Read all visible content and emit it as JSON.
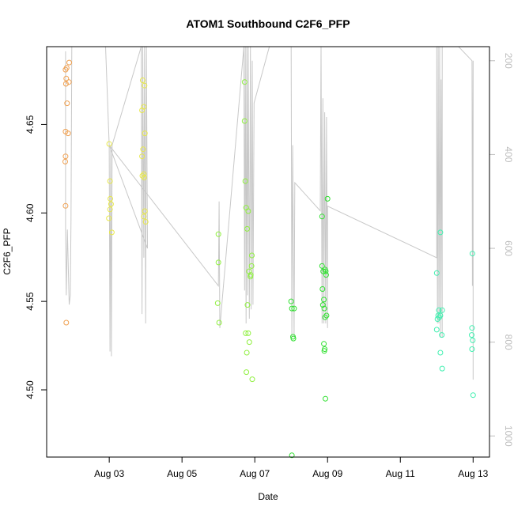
{
  "chart_data": {
    "type": "scatter",
    "title": "ATOM1 Southbound C2F6_PFP",
    "xlabel": "Date",
    "ylabel": "C2F6_PFP",
    "x_unit": "date (August)",
    "xlim": [
      1.28,
      13.45
    ],
    "ylim": [
      4.462,
      4.694
    ],
    "x_ticks": [
      {
        "value": 3,
        "label": "Aug 03"
      },
      {
        "value": 5,
        "label": "Aug 05"
      },
      {
        "value": 7,
        "label": "Aug 07"
      },
      {
        "value": 9,
        "label": "Aug 09"
      },
      {
        "value": 11,
        "label": "Aug 11"
      },
      {
        "value": 13,
        "label": "Aug 13"
      }
    ],
    "y_ticks": [
      {
        "value": 4.5,
        "label": "4.50"
      },
      {
        "value": 4.55,
        "label": "4.55"
      },
      {
        "value": 4.6,
        "label": "4.60"
      },
      {
        "value": 4.65,
        "label": "4.65"
      }
    ],
    "right_axis": {
      "ylim": [
        1045,
        170
      ],
      "ticks": [
        {
          "value": 200,
          "label": "200"
        },
        {
          "value": 400,
          "label": "400"
        },
        {
          "value": 600,
          "label": "600"
        },
        {
          "value": 800,
          "label": "800"
        },
        {
          "value": 1000,
          "label": "1000"
        }
      ],
      "color": "#bdbdbd"
    },
    "grid": false,
    "legend": "none",
    "series": [
      {
        "color": "#f0a050",
        "points": [
          [
            1.8,
            4.681
          ],
          [
            1.83,
            4.682
          ],
          [
            1.82,
            4.676
          ],
          [
            1.81,
            4.673
          ],
          [
            1.9,
            4.685
          ],
          [
            1.89,
            4.674
          ],
          [
            1.84,
            4.662
          ],
          [
            1.8,
            4.646
          ],
          [
            1.87,
            4.645
          ],
          [
            1.8,
            4.632
          ],
          [
            1.79,
            4.629
          ],
          [
            1.8,
            4.604
          ],
          [
            1.82,
            4.538
          ]
        ]
      },
      {
        "color": "#e8e84a",
        "points": [
          [
            3.0,
            4.639
          ],
          [
            3.02,
            4.618
          ],
          [
            3.03,
            4.608
          ],
          [
            3.05,
            4.605
          ],
          [
            3.02,
            4.602
          ],
          [
            2.99,
            4.597
          ],
          [
            3.07,
            4.589
          ],
          [
            3.92,
            4.675
          ],
          [
            3.97,
            4.672
          ],
          [
            3.95,
            4.66
          ],
          [
            3.9,
            4.658
          ],
          [
            3.98,
            4.645
          ],
          [
            3.93,
            4.636
          ],
          [
            3.9,
            4.632
          ],
          [
            3.95,
            4.622
          ],
          [
            3.91,
            4.621
          ],
          [
            3.96,
            4.62
          ],
          [
            3.98,
            4.601
          ],
          [
            3.95,
            4.598
          ],
          [
            4.0,
            4.595
          ]
        ]
      },
      {
        "color": "#90f040",
        "points": [
          [
            6.0,
            4.588
          ],
          [
            6.0,
            4.572
          ],
          [
            5.98,
            4.549
          ],
          [
            6.02,
            4.538
          ],
          [
            6.72,
            4.674
          ],
          [
            6.72,
            4.652
          ],
          [
            6.74,
            4.618
          ],
          [
            6.76,
            4.603
          ],
          [
            6.82,
            4.601
          ],
          [
            6.79,
            4.591
          ],
          [
            6.92,
            4.576
          ],
          [
            6.91,
            4.57
          ],
          [
            6.84,
            4.567
          ],
          [
            6.89,
            4.565
          ],
          [
            6.88,
            4.564
          ],
          [
            6.8,
            4.548
          ],
          [
            6.75,
            4.532
          ],
          [
            6.82,
            4.532
          ],
          [
            6.85,
            4.527
          ],
          [
            6.78,
            4.521
          ],
          [
            6.77,
            4.51
          ],
          [
            6.93,
            4.506
          ]
        ]
      },
      {
        "color": "#30e030",
        "points": [
          [
            8.0,
            4.55
          ],
          [
            8.02,
            4.546
          ],
          [
            8.08,
            4.546
          ],
          [
            8.05,
            4.53
          ],
          [
            8.06,
            4.529
          ],
          [
            8.02,
            4.463
          ],
          [
            8.85,
            4.598
          ],
          [
            8.85,
            4.57
          ],
          [
            8.88,
            4.567
          ],
          [
            8.93,
            4.568
          ],
          [
            8.95,
            4.567
          ],
          [
            8.96,
            4.565
          ],
          [
            8.86,
            4.557
          ],
          [
            8.9,
            4.551
          ],
          [
            8.87,
            4.548
          ],
          [
            8.91,
            4.546
          ],
          [
            8.97,
            4.542
          ],
          [
            8.93,
            4.541
          ],
          [
            8.9,
            4.526
          ],
          [
            8.92,
            4.523
          ],
          [
            8.91,
            4.522
          ],
          [
            8.94,
            4.495
          ],
          [
            9.0,
            4.608
          ]
        ]
      },
      {
        "color": "#40f0b0",
        "points": [
          [
            12.1,
            4.589
          ],
          [
            12.0,
            4.566
          ],
          [
            12.06,
            4.545
          ],
          [
            12.15,
            4.545
          ],
          [
            12.04,
            4.542
          ],
          [
            12.07,
            4.541
          ],
          [
            12.02,
            4.54
          ],
          [
            12.1,
            4.542
          ],
          [
            12.0,
            4.534
          ],
          [
            12.14,
            4.531
          ],
          [
            12.1,
            4.521
          ],
          [
            12.15,
            4.512
          ],
          [
            12.98,
            4.577
          ],
          [
            12.97,
            4.535
          ],
          [
            12.96,
            4.531
          ],
          [
            12.99,
            4.528
          ],
          [
            12.97,
            4.523
          ],
          [
            13.0,
            4.497
          ]
        ]
      }
    ],
    "right_axis_line": {
      "color": "#c8c8c8",
      "points": [
        [
          1.8,
          180
        ],
        [
          1.8,
          560
        ],
        [
          1.82,
          700
        ],
        [
          1.85,
          560
        ],
        [
          1.9,
          720
        ],
        [
          1.93,
          700
        ],
        [
          1.95,
          540
        ],
        [
          1.97,
          170
        ],
        [
          2.9,
          170
        ],
        [
          3.0,
          380
        ],
        [
          3.02,
          820
        ],
        [
          3.04,
          380
        ],
        [
          3.06,
          830
        ],
        [
          3.08,
          380
        ],
        [
          3.88,
          170
        ],
        [
          3.9,
          740
        ],
        [
          3.92,
          170
        ],
        [
          3.95,
          620
        ],
        [
          3.97,
          170
        ],
        [
          4.0,
          760
        ],
        [
          4.02,
          170
        ],
        [
          4.05,
          600
        ],
        [
          3.0,
          380
        ],
        [
          6.0,
          680
        ],
        [
          6.02,
          500
        ],
        [
          6.04,
          770
        ],
        [
          6.7,
          170
        ],
        [
          6.72,
          690
        ],
        [
          6.74,
          170
        ],
        [
          6.76,
          760
        ],
        [
          6.78,
          170
        ],
        [
          6.8,
          700
        ],
        [
          6.82,
          170
        ],
        [
          6.85,
          750
        ],
        [
          6.88,
          170
        ],
        [
          6.9,
          730
        ],
        [
          6.93,
          200
        ],
        [
          6.95,
          720
        ],
        [
          6.98,
          290
        ],
        [
          6.98,
          290
        ],
        [
          7.4,
          170
        ],
        [
          8.0,
          170
        ],
        [
          8.02,
          790
        ],
        [
          8.04,
          380
        ],
        [
          8.08,
          790
        ],
        [
          8.1,
          460
        ],
        [
          8.1,
          460
        ],
        [
          8.8,
          520
        ],
        [
          8.82,
          170
        ],
        [
          8.85,
          760
        ],
        [
          8.87,
          280
        ],
        [
          8.9,
          760
        ],
        [
          8.92,
          310
        ],
        [
          8.95,
          760
        ],
        [
          8.97,
          320
        ],
        [
          9.0,
          770
        ],
        [
          9.0,
          510
        ],
        [
          12.0,
          620
        ],
        [
          12.0,
          170
        ],
        [
          12.02,
          760
        ],
        [
          12.04,
          170
        ],
        [
          12.06,
          760
        ],
        [
          12.08,
          170
        ],
        [
          12.1,
          790
        ],
        [
          12.12,
          240
        ],
        [
          12.15,
          790
        ],
        [
          12.15,
          170
        ],
        [
          12.6,
          170
        ],
        [
          12.97,
          200
        ],
        [
          12.98,
          680
        ],
        [
          13.0,
          200
        ],
        [
          13.0,
          880
        ]
      ]
    }
  }
}
